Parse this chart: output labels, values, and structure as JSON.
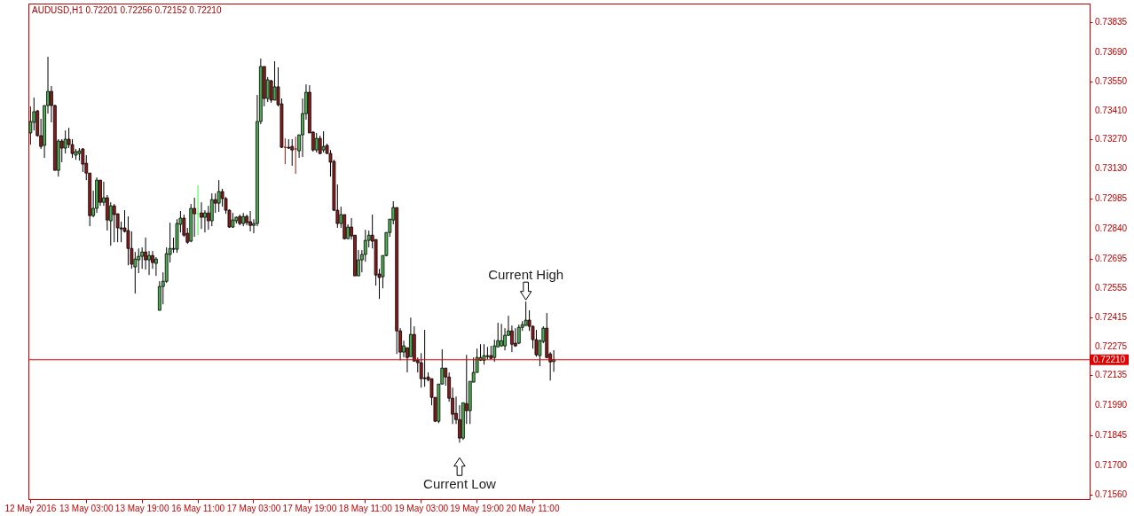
{
  "chart_data": {
    "type": "candlestick",
    "title": "AUDUSD,H1  0.72201 0.72256 0.72152 0.72210",
    "categories": [
      "12 May 2016",
      null,
      null,
      null,
      null,
      null,
      null,
      null,
      null,
      null,
      null,
      null,
      null,
      null,
      null,
      null,
      "13 May 03:00",
      null,
      null,
      null,
      null,
      null,
      null,
      null,
      null,
      null,
      null,
      null,
      null,
      null,
      null,
      null,
      "13 May 19:00",
      null,
      null,
      null,
      null,
      null,
      null,
      null,
      null,
      null,
      null,
      null,
      null,
      null,
      null,
      null,
      "16 May 11:00",
      null,
      null,
      null,
      null,
      null,
      null,
      null,
      null,
      null,
      null,
      null,
      null,
      null,
      null,
      null,
      "17 May 03:00",
      null,
      null,
      null,
      null,
      null,
      null,
      null,
      null,
      null,
      null,
      null,
      null,
      null,
      null,
      null,
      "17 May 19:00",
      null,
      null,
      null,
      null,
      null,
      null,
      null,
      null,
      null,
      null,
      null,
      null,
      null,
      null,
      null,
      "18 May 11:00",
      null,
      null,
      null,
      null,
      null,
      null,
      null,
      null,
      null,
      null,
      null,
      null,
      null,
      null,
      null,
      "19 May 03:00",
      null,
      null,
      null,
      null,
      null,
      null,
      null,
      null,
      null,
      null,
      null,
      null,
      null,
      null,
      null,
      "19 May 19:00",
      null,
      null,
      null,
      null,
      null,
      null,
      null,
      null,
      null,
      null,
      null,
      null,
      null,
      null,
      null,
      "20 May 11:00",
      null,
      null,
      null,
      null,
      null,
      null,
      null,
      null,
      null,
      null,
      null,
      null,
      null,
      null,
      null,
      null,
      null,
      null,
      null,
      null,
      null,
      null,
      null,
      null,
      null,
      null,
      null,
      null,
      null,
      null,
      null,
      null,
      null,
      null,
      null,
      null,
      null,
      null,
      null,
      null,
      null,
      null,
      null,
      null,
      null,
      null,
      null,
      null,
      null,
      null,
      null,
      null,
      null,
      null,
      null,
      null,
      null,
      null,
      null,
      null,
      null,
      null,
      null,
      null,
      null,
      null,
      null,
      null,
      null,
      null,
      null,
      null,
      null,
      null,
      null,
      null,
      null,
      null,
      null,
      null,
      null,
      null,
      null,
      null,
      null,
      null,
      null,
      null,
      null,
      null,
      null,
      null,
      null,
      null,
      null,
      null,
      null,
      null,
      null,
      null,
      null,
      null,
      null,
      null,
      null,
      null,
      null,
      null,
      null,
      null,
      null,
      null,
      null,
      null,
      null,
      null,
      null,
      null,
      null,
      null,
      null,
      null,
      null,
      null,
      null,
      null,
      null,
      null,
      null,
      null,
      null,
      null,
      null,
      null,
      null,
      null,
      null,
      null,
      null,
      null,
      null,
      null,
      null,
      null,
      null,
      null,
      null,
      null,
      null,
      null,
      null,
      null,
      null,
      null,
      null,
      null,
      null,
      null,
      null
    ],
    "ohlc": [
      [
        0.73302,
        0.7343,
        0.73246,
        0.73357
      ],
      [
        0.73353,
        0.73472,
        0.73314,
        0.73404
      ],
      [
        0.73408,
        0.73413,
        0.73284,
        0.73289
      ],
      [
        0.73289,
        0.7337,
        0.73225,
        0.73237
      ],
      [
        0.73242,
        0.73434,
        0.73182,
        0.73434
      ],
      [
        0.73434,
        0.73669,
        0.73395,
        0.73502
      ],
      [
        0.73502,
        0.73528,
        0.73353,
        0.73434
      ],
      [
        0.73434,
        0.73438,
        0.73122,
        0.73122
      ],
      [
        0.73122,
        0.73272,
        0.73092,
        0.73263
      ],
      [
        0.73263,
        0.73272,
        0.73161,
        0.73229
      ],
      [
        0.73229,
        0.73314,
        0.73203,
        0.73272
      ],
      [
        0.73272,
        0.73327,
        0.73229,
        0.73246
      ],
      [
        0.73246,
        0.73272,
        0.73182,
        0.73203
      ],
      [
        0.73195,
        0.73225,
        0.73173,
        0.73212
      ],
      [
        0.73203,
        0.73229,
        0.73169,
        0.73216
      ],
      [
        0.73225,
        0.73229,
        0.73114,
        0.73152
      ],
      [
        0.73156,
        0.73195,
        0.73075,
        0.73109
      ],
      [
        0.73109,
        0.73109,
        0.72853,
        0.72904
      ],
      [
        0.72904,
        0.73024,
        0.72896,
        0.72939
      ],
      [
        0.72939,
        0.73088,
        0.72917,
        0.73075
      ],
      [
        0.73075,
        0.73075,
        0.72951,
        0.72968
      ],
      [
        0.72968,
        0.73067,
        0.72951,
        0.7299
      ],
      [
        0.7299,
        0.73003,
        0.72832,
        0.72883
      ],
      [
        0.72879,
        0.72968,
        0.72759,
        0.72951
      ],
      [
        0.72951,
        0.7296,
        0.72776,
        0.72909
      ],
      [
        0.72913,
        0.72913,
        0.72776,
        0.72845
      ],
      [
        0.72845,
        0.72875,
        0.72776,
        0.7284
      ],
      [
        0.72845,
        0.7293,
        0.72823,
        0.72828
      ],
      [
        0.72832,
        0.729,
        0.72665,
        0.72746
      ],
      [
        0.72746,
        0.72828,
        0.72648,
        0.7267
      ],
      [
        0.72657,
        0.72729,
        0.72529,
        0.72695
      ],
      [
        0.72691,
        0.72746,
        0.72627,
        0.72708
      ],
      [
        0.72708,
        0.72751,
        0.72648,
        0.72729
      ],
      [
        0.72729,
        0.72798,
        0.72644,
        0.72691
      ],
      [
        0.72691,
        0.72734,
        0.72618,
        0.72712
      ],
      [
        0.72712,
        0.72734,
        0.72648,
        0.72678
      ],
      [
        0.72674,
        0.72704,
        0.72614,
        0.72695
      ],
      [
        0.72448,
        0.72588,
        0.72448,
        0.72563
      ],
      [
        0.72563,
        0.72631,
        0.72477,
        0.72588
      ],
      [
        0.72588,
        0.72751,
        0.7258,
        0.72721
      ],
      [
        0.72717,
        0.7287,
        0.72678,
        0.72746
      ],
      [
        0.72742,
        0.72798,
        0.72725,
        0.72746
      ],
      [
        0.72742,
        0.72887,
        0.72725,
        0.72866
      ],
      [
        0.72862,
        0.72926,
        0.72823,
        0.72892
      ],
      [
        0.72892,
        0.72909,
        0.72802,
        0.7281
      ],
      [
        0.72819,
        0.72845,
        0.72768,
        0.72776
      ],
      [
        0.72781,
        0.7296,
        0.72776,
        0.72939
      ],
      [
        0.72939,
        0.7299,
        0.72802,
        0.72913
      ],
      [
        0.72913,
        0.7305,
        0.7281,
        0.72913
      ],
      [
        0.72917,
        0.72968,
        0.7284,
        0.72896
      ],
      [
        0.72896,
        0.7293,
        0.72823,
        0.72917
      ],
      [
        0.72917,
        0.72951,
        0.72836,
        0.72879
      ],
      [
        0.72879,
        0.73011,
        0.72853,
        0.72981
      ],
      [
        0.72981,
        0.73011,
        0.72917,
        0.72964
      ],
      [
        0.72964,
        0.73075,
        0.72922,
        0.7302
      ],
      [
        0.7302,
        0.73033,
        0.72947,
        0.72986
      ],
      [
        0.72986,
        0.72994,
        0.72913,
        0.7293
      ],
      [
        0.7293,
        0.72934,
        0.72845,
        0.72849
      ],
      [
        0.72849,
        0.72917,
        0.72845,
        0.72883
      ],
      [
        0.72879,
        0.729,
        0.72866,
        0.72896
      ],
      [
        0.729,
        0.72909,
        0.72857,
        0.72866
      ],
      [
        0.72866,
        0.72917,
        0.72853,
        0.729
      ],
      [
        0.729,
        0.72909,
        0.72857,
        0.7287
      ],
      [
        0.72875,
        0.72926,
        0.72828,
        0.72857
      ],
      [
        0.72857,
        0.72887,
        0.72819,
        0.72866
      ],
      [
        0.72866,
        0.73485,
        0.72853,
        0.73357
      ],
      [
        0.73357,
        0.7366,
        0.73344,
        0.73622
      ],
      [
        0.73622,
        0.73622,
        0.7343,
        0.73468
      ],
      [
        0.73468,
        0.73571,
        0.73451,
        0.73558
      ],
      [
        0.73553,
        0.73558,
        0.73447,
        0.7346
      ],
      [
        0.7346,
        0.73647,
        0.7346,
        0.73524
      ],
      [
        0.73524,
        0.73618,
        0.7343,
        0.73438
      ],
      [
        0.73442,
        0.73468,
        0.73229,
        0.73233
      ],
      [
        0.73233,
        0.73276,
        0.73152,
        0.73233
      ],
      [
        0.73233,
        0.73272,
        0.73225,
        0.73229
      ],
      [
        0.73237,
        0.73272,
        0.73144,
        0.7322
      ],
      [
        0.73225,
        0.73284,
        0.73105,
        0.73225
      ],
      [
        0.73216,
        0.73293,
        0.73182,
        0.73293
      ],
      [
        0.73293,
        0.73468,
        0.73186,
        0.73395
      ],
      [
        0.73395,
        0.73536,
        0.73366,
        0.73498
      ],
      [
        0.73498,
        0.73532,
        0.73302,
        0.73302
      ],
      [
        0.73306,
        0.7331,
        0.73212,
        0.7322
      ],
      [
        0.7322,
        0.73302,
        0.73208,
        0.73276
      ],
      [
        0.73276,
        0.73289,
        0.73199,
        0.73203
      ],
      [
        0.7322,
        0.7331,
        0.73208,
        0.73237
      ],
      [
        0.73242,
        0.7325,
        0.73203,
        0.73203
      ],
      [
        0.73203,
        0.7322,
        0.73092,
        0.73161
      ],
      [
        0.73165,
        0.73173,
        0.72926,
        0.7293
      ],
      [
        0.7293,
        0.73054,
        0.72845,
        0.72866
      ],
      [
        0.72866,
        0.72947,
        0.72845,
        0.72909
      ],
      [
        0.72909,
        0.72909,
        0.72789,
        0.72793
      ],
      [
        0.72793,
        0.72862,
        0.72793,
        0.72849
      ],
      [
        0.72849,
        0.72892,
        0.72789,
        0.72806
      ],
      [
        0.7281,
        0.7281,
        0.72614,
        0.72614
      ],
      [
        0.72614,
        0.72738,
        0.72614,
        0.72691
      ],
      [
        0.72691,
        0.72738,
        0.72631,
        0.72717
      ],
      [
        0.72717,
        0.72836,
        0.72682,
        0.72785
      ],
      [
        0.72785,
        0.72832,
        0.72751,
        0.7281
      ],
      [
        0.7281,
        0.72909,
        0.72746,
        0.72781
      ],
      [
        0.72789,
        0.72789,
        0.72567,
        0.72618
      ],
      [
        0.72623,
        0.72648,
        0.72503,
        0.72606
      ],
      [
        0.7261,
        0.72712,
        0.72554,
        0.72712
      ],
      [
        0.72712,
        0.72823,
        0.72708,
        0.72823
      ],
      [
        0.72823,
        0.72887,
        0.72802,
        0.72887
      ],
      [
        0.72883,
        0.72973,
        0.72862,
        0.72943
      ],
      [
        0.72943,
        0.72943,
        0.72238,
        0.72349
      ],
      [
        0.72349,
        0.72362,
        0.72208,
        0.72247
      ],
      [
        0.72247,
        0.72302,
        0.72221,
        0.72277
      ],
      [
        0.72268,
        0.72268,
        0.72149,
        0.72221
      ],
      [
        0.72225,
        0.72413,
        0.72225,
        0.72332
      ],
      [
        0.72332,
        0.72371,
        0.722,
        0.72204
      ],
      [
        0.72208,
        0.72221,
        0.72149,
        0.72196
      ],
      [
        0.72196,
        0.72242,
        0.72076,
        0.72119
      ],
      [
        0.72123,
        0.72354,
        0.7208,
        0.72119
      ],
      [
        0.72127,
        0.72149,
        0.72106,
        0.72114
      ],
      [
        0.72119,
        0.72119,
        0.71991,
        0.72029
      ],
      [
        0.72029,
        0.72029,
        0.7191,
        0.71914
      ],
      [
        0.71914,
        0.72093,
        0.71905,
        0.72093
      ],
      [
        0.72093,
        0.7226,
        0.72093,
        0.7217
      ],
      [
        0.7217,
        0.7217,
        0.72085,
        0.72127
      ],
      [
        0.72127,
        0.72149,
        0.72008,
        0.72025
      ],
      [
        0.72025,
        0.72076,
        0.71901,
        0.71948
      ],
      [
        0.71952,
        0.72033,
        0.71901,
        0.71922
      ],
      [
        0.71922,
        0.71991,
        0.71811,
        0.71833
      ],
      [
        0.71833,
        0.72003,
        0.71824,
        0.72003
      ],
      [
        0.71999,
        0.72234,
        0.71901,
        0.71965
      ],
      [
        0.71965,
        0.72106,
        0.71901,
        0.72106
      ],
      [
        0.72102,
        0.72221,
        0.72102,
        0.72149
      ],
      [
        0.72149,
        0.72264,
        0.72149,
        0.72221
      ],
      [
        0.72208,
        0.72285,
        0.72204,
        0.72221
      ],
      [
        0.72208,
        0.72285,
        0.72187,
        0.7223
      ],
      [
        0.72225,
        0.72272,
        0.72213,
        0.7223
      ],
      [
        0.7223,
        0.72277,
        0.72213,
        0.72217
      ],
      [
        0.72221,
        0.72307,
        0.722,
        0.72277
      ],
      [
        0.72272,
        0.72388,
        0.72272,
        0.72302
      ],
      [
        0.72277,
        0.72383,
        0.72272,
        0.72302
      ],
      [
        0.72277,
        0.72362,
        0.72255,
        0.72328
      ],
      [
        0.72328,
        0.72422,
        0.72324,
        0.72349
      ],
      [
        0.72349,
        0.72375,
        0.72247,
        0.72285
      ],
      [
        0.7229,
        0.72362,
        0.72272,
        0.72277
      ],
      [
        0.7229,
        0.72379,
        0.72285,
        0.72366
      ],
      [
        0.72366,
        0.72396,
        0.72349,
        0.72379
      ],
      [
        0.72375,
        0.7249,
        0.72375,
        0.72401
      ],
      [
        0.72401,
        0.72448,
        0.72349,
        0.72371
      ],
      [
        0.72371,
        0.72375,
        0.72264,
        0.72307
      ],
      [
        0.72307,
        0.72354,
        0.72225,
        0.72234
      ],
      [
        0.7223,
        0.72307,
        0.72179,
        0.72302
      ],
      [
        0.72298,
        0.72371,
        0.7229,
        0.72362
      ],
      [
        0.72362,
        0.72435,
        0.72217,
        0.72221
      ],
      [
        0.72238,
        0.72247,
        0.7211,
        0.722
      ],
      [
        0.72201,
        0.72256,
        0.72152,
        0.7221
      ],
      null,
      null,
      null,
      null,
      null,
      null,
      null,
      null,
      null,
      null,
      null,
      null,
      null,
      null,
      null,
      null,
      null,
      null,
      null,
      null,
      null,
      null,
      null,
      null,
      null,
      null,
      null,
      null,
      null,
      null,
      null,
      null,
      null,
      null,
      null,
      null,
      null,
      null,
      null,
      null,
      null,
      null,
      null,
      null,
      null,
      null,
      null,
      null,
      null,
      null,
      null,
      null,
      null,
      null,
      null,
      null,
      null,
      null,
      null,
      null,
      null,
      null,
      null,
      null,
      null,
      null,
      null,
      null,
      null,
      null,
      null,
      null,
      null,
      null,
      null,
      null,
      null,
      null,
      null,
      null,
      null,
      null,
      null,
      null,
      null,
      null,
      null,
      null,
      null,
      null,
      null,
      null,
      null,
      null,
      null,
      null,
      null,
      null,
      null,
      null,
      null,
      null,
      null,
      null,
      null,
      null,
      null,
      null,
      null,
      null,
      null,
      null,
      null,
      null,
      null,
      null,
      null,
      null,
      null,
      null,
      null,
      null,
      null,
      null,
      null,
      null,
      null,
      null,
      null,
      null,
      null,
      null,
      null,
      null,
      null,
      null,
      null,
      null,
      null,
      null,
      null,
      null,
      null,
      null,
      null,
      null,
      null,
      null,
      null,
      null,
      null,
      null,
      null
    ],
    "colors": [
      "#4caf50",
      "#4caf50",
      "#8b1a1a",
      "#8b1a1a",
      "#4caf50",
      "#4caf50",
      "#8b1a1a",
      "#8b1a1a",
      "#4caf50",
      "#8b1a1a",
      "#4caf50",
      "#8b1a1a",
      "#8b1a1a",
      "#4caf50",
      "#4caf50",
      "#8b1a1a",
      "#8b1a1a",
      "#8b1a1a",
      "#4caf50",
      "#4caf50",
      "#8b1a1a",
      "#4caf50",
      "#8b1a1a",
      "#4caf50",
      "#8b1a1a",
      "#8b1a1a",
      "#8b1a1a",
      "#8b1a1a",
      "#8b1a1a",
      "#8b1a1a",
      "#4caf50",
      "#4caf50",
      "#4caf50",
      "#8b1a1a",
      "#4caf50",
      "#8b1a1a",
      "#4caf50",
      "#4caf50",
      "#4caf50",
      "#4caf50",
      "#4caf50",
      "#4caf50",
      "#4caf50",
      "#4caf50",
      "#8b1a1a",
      "#8b1a1a",
      "#4caf50",
      "#8b1a1a",
      "#33ff33",
      "#8b1a1a",
      "#4caf50",
      "#8b1a1a",
      "#4caf50",
      "#8b1a1a",
      "#4caf50",
      "#8b1a1a",
      "#8b1a1a",
      "#8b1a1a",
      "#4caf50",
      "#4caf50",
      "#8b1a1a",
      "#4caf50",
      "#8b1a1a",
      "#8b1a1a",
      "#4caf50",
      "#4caf50",
      "#4caf50",
      "#8b1a1a",
      "#4caf50",
      "#8b1a1a",
      "#4caf50",
      "#8b1a1a",
      "#8b1a1a",
      "#8b1a1a",
      "#8b1a1a",
      "#8b1a1a",
      "#8b1a1a",
      "#4caf50",
      "#4caf50",
      "#4caf50",
      "#8b1a1a",
      "#8b1a1a",
      "#4caf50",
      "#8b1a1a",
      "#4caf50",
      "#8b1a1a",
      "#8b1a1a",
      "#8b1a1a",
      "#8b1a1a",
      "#4caf50",
      "#8b1a1a",
      "#4caf50",
      "#8b1a1a",
      "#8b1a1a",
      "#4caf50",
      "#4caf50",
      "#4caf50",
      "#4caf50",
      "#8b1a1a",
      "#8b1a1a",
      "#8b1a1a",
      "#4caf50",
      "#4caf50",
      "#4caf50",
      "#4caf50",
      "#8b1a1a",
      "#8b1a1a",
      "#4caf50",
      "#8b1a1a",
      "#4caf50",
      "#8b1a1a",
      "#8b1a1a",
      "#8b1a1a",
      "#8b1a1a",
      "#8b1a1a",
      "#8b1a1a",
      "#8b1a1a",
      "#4caf50",
      "#4caf50",
      "#8b1a1a",
      "#8b1a1a",
      "#8b1a1a",
      "#8b1a1a",
      "#8b1a1a",
      "#4caf50",
      "#8b1a1a",
      "#4caf50",
      "#4caf50",
      "#4caf50",
      "#4caf50",
      "#4caf50",
      "#4caf50",
      "#8b1a1a",
      "#4caf50",
      "#4caf50",
      "#4caf50",
      "#4caf50",
      "#4caf50",
      "#8b1a1a",
      "#8b1a1a",
      "#4caf50",
      "#4caf50",
      "#4caf50",
      "#8b1a1a",
      "#8b1a1a",
      "#8b1a1a",
      "#4caf50",
      "#4caf50",
      "#8b1a1a",
      "#8b1a1a",
      "#4caf50",
      null,
      null,
      null,
      null,
      null,
      null,
      null,
      null,
      null,
      null,
      null,
      null,
      null,
      null,
      null,
      null,
      null,
      null,
      null,
      null,
      null,
      null,
      null,
      null,
      null,
      null,
      null,
      null,
      null,
      null,
      null,
      null,
      null,
      null,
      null,
      null,
      null,
      null,
      null,
      null,
      null,
      null,
      null,
      null,
      null,
      null,
      null,
      null,
      null,
      null,
      null,
      null,
      null,
      null,
      null,
      null,
      null,
      null,
      null,
      null,
      null,
      null,
      null,
      null,
      null,
      null,
      null,
      null,
      null,
      null,
      null,
      null,
      null,
      null,
      null,
      null,
      null,
      null,
      null,
      null,
      null,
      null,
      null,
      null,
      null,
      null,
      null,
      null,
      null,
      null,
      null,
      null,
      null,
      null,
      null,
      null,
      null,
      null,
      null,
      null,
      null,
      null,
      null,
      null,
      null,
      null,
      null,
      null,
      null,
      null,
      null,
      null,
      null,
      null,
      null,
      null,
      null,
      null,
      null,
      null,
      null,
      null,
      null,
      null,
      null,
      null,
      null,
      null,
      null,
      null,
      null,
      null,
      null,
      null,
      null,
      null,
      null,
      null,
      null,
      null,
      null,
      null,
      null,
      null,
      null,
      null,
      null,
      null,
      null,
      null,
      null,
      null,
      null
    ],
    "ylim": [
      0.71539,
      0.73925
    ],
    "yticks": [
      {
        "value": 0.73835,
        "label": "0.73835"
      },
      {
        "value": 0.7369,
        "label": "0.73690"
      },
      {
        "value": 0.7355,
        "label": "0.73550"
      },
      {
        "value": 0.7341,
        "label": "0.73410"
      },
      {
        "value": 0.7327,
        "label": "0.73270"
      },
      {
        "value": 0.7313,
        "label": "0.73130"
      },
      {
        "value": 0.72985,
        "label": "0.72985"
      },
      {
        "value": 0.7284,
        "label": "0.72840"
      },
      {
        "value": 0.72695,
        "label": "0.72695"
      },
      {
        "value": 0.72555,
        "label": "0.72555"
      },
      {
        "value": 0.72415,
        "label": "0.72415"
      },
      {
        "value": 0.72275,
        "label": "0.72275"
      },
      {
        "value": 0.72135,
        "label": "0.72135"
      },
      {
        "value": 0.7199,
        "label": "0.71990"
      },
      {
        "value": 0.71845,
        "label": "0.71845"
      },
      {
        "value": 0.717,
        "label": "0.71700"
      },
      {
        "value": 0.7156,
        "label": "0.71560"
      }
    ],
    "ref_lines": [
      {
        "axis": "y",
        "value": 0.7221,
        "label": "0.72210",
        "color": "#e00000"
      }
    ],
    "annotations": [
      "Current High",
      "Current Low"
    ]
  }
}
